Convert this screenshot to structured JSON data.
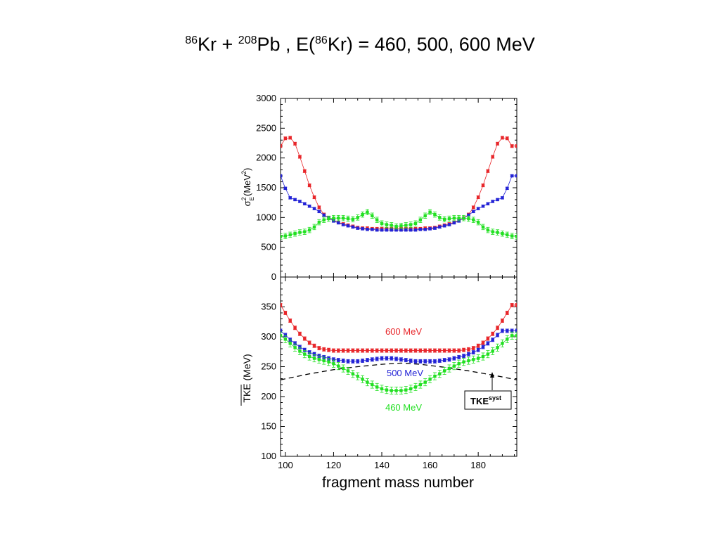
{
  "title": {
    "sup1": "86",
    "t1": "Kr + ",
    "sup2": "208",
    "t2": "Pb , E(",
    "sup3": "86",
    "t3": "Kr) = 460, 500, 600 MeV"
  },
  "chart_data": [
    {
      "type": "scatter",
      "panel": "top",
      "ylabel": {
        "base": "σ",
        "sup": "2",
        "sub": "E",
        "unit": "(MeV",
        "unit_sup": "2",
        "close": ")"
      },
      "xlim": [
        98,
        196
      ],
      "ylim": [
        0,
        3000
      ],
      "yticks": [
        "0",
        "500",
        "1000",
        "1500",
        "2000",
        "2500",
        "3000"
      ],
      "colors": {
        "600 MeV": "#e8262a",
        "500 MeV": "#2323d6",
        "460 MeV": "#22e022"
      },
      "x": [
        98,
        100,
        102,
        104,
        106,
        108,
        110,
        112,
        114,
        116,
        118,
        120,
        122,
        124,
        126,
        128,
        130,
        132,
        134,
        136,
        138,
        140,
        142,
        144,
        146,
        148,
        150,
        152,
        154,
        156,
        158,
        160,
        162,
        164,
        166,
        168,
        170,
        172,
        174,
        176,
        178,
        180,
        182,
        184,
        186,
        188,
        190,
        192,
        194,
        196
      ],
      "series": [
        {
          "name": "600 MeV",
          "values": [
            2200,
            2330,
            2340,
            2240,
            2020,
            1780,
            1540,
            1340,
            1170,
            1050,
            990,
            950,
            920,
            890,
            870,
            850,
            830,
            820,
            820,
            810,
            810,
            810,
            810,
            810,
            810,
            810,
            810,
            810,
            810,
            810,
            820,
            820,
            830,
            850,
            870,
            890,
            920,
            950,
            990,
            1050,
            1170,
            1340,
            1540,
            1780,
            2020,
            2240,
            2340,
            2330,
            2200,
            2200
          ],
          "err": 25
        },
        {
          "name": "500 MeV",
          "values": [
            1700,
            1490,
            1330,
            1300,
            1270,
            1230,
            1190,
            1150,
            1100,
            1040,
            990,
            940,
            910,
            880,
            860,
            840,
            820,
            810,
            800,
            800,
            790,
            790,
            790,
            790,
            790,
            790,
            790,
            790,
            790,
            800,
            800,
            810,
            820,
            840,
            860,
            880,
            910,
            940,
            990,
            1040,
            1100,
            1150,
            1190,
            1230,
            1270,
            1300,
            1330,
            1490,
            1700,
            1700
          ],
          "err": 20
        },
        {
          "name": "460 MeV",
          "values": [
            680,
            690,
            710,
            730,
            750,
            760,
            790,
            840,
            920,
            960,
            980,
            990,
            990,
            990,
            980,
            970,
            1000,
            1050,
            1090,
            1030,
            960,
            900,
            880,
            870,
            850,
            860,
            870,
            880,
            900,
            960,
            1030,
            1090,
            1050,
            1000,
            970,
            980,
            990,
            990,
            990,
            980,
            960,
            920,
            840,
            790,
            760,
            750,
            730,
            710,
            690,
            680
          ],
          "err": 45
        }
      ]
    },
    {
      "type": "scatter",
      "panel": "bottom",
      "ylabel": "TKE (MeV)",
      "xlabel": "fragment mass number",
      "xlim": [
        98,
        196
      ],
      "ylim": [
        100,
        400
      ],
      "xticks": [
        "100",
        "120",
        "140",
        "160",
        "180"
      ],
      "yticks": [
        "100",
        "150",
        "200",
        "250",
        "300",
        "350"
      ],
      "colors": {
        "600 MeV": "#e8262a",
        "500 MeV": "#2323d6",
        "460 MeV": "#22e022"
      },
      "x": [
        98,
        100,
        102,
        104,
        106,
        108,
        110,
        112,
        114,
        116,
        118,
        120,
        122,
        124,
        126,
        128,
        130,
        132,
        134,
        136,
        138,
        140,
        142,
        144,
        146,
        148,
        150,
        152,
        154,
        156,
        158,
        160,
        162,
        164,
        166,
        168,
        170,
        172,
        174,
        176,
        178,
        180,
        182,
        184,
        186,
        188,
        190,
        192,
        194,
        196
      ],
      "series": [
        {
          "name": "600 MeV",
          "values": [
            353,
            340,
            327,
            315,
            305,
            297,
            290,
            285,
            281,
            279,
            278,
            277,
            277,
            277,
            277,
            277,
            277,
            277,
            277,
            277,
            277,
            277,
            277,
            277,
            277,
            277,
            277,
            277,
            277,
            277,
            277,
            277,
            277,
            277,
            277,
            277,
            277,
            277,
            278,
            279,
            281,
            285,
            290,
            297,
            305,
            315,
            327,
            340,
            353,
            353
          ],
          "err": 3
        },
        {
          "name": "500 MeV",
          "values": [
            310,
            303,
            295,
            289,
            283,
            278,
            274,
            271,
            268,
            266,
            264,
            262,
            261,
            260,
            259,
            259,
            259,
            260,
            261,
            262,
            263,
            264,
            264,
            264,
            263,
            262,
            261,
            260,
            259,
            259,
            259,
            259,
            259,
            260,
            261,
            262,
            264,
            266,
            268,
            271,
            274,
            278,
            283,
            289,
            295,
            303,
            310,
            310,
            310,
            310
          ],
          "err": 3
        },
        {
          "name": "460 MeV",
          "values": [
            302,
            296,
            289,
            282,
            276,
            271,
            267,
            264,
            262,
            260,
            258,
            255,
            251,
            247,
            243,
            238,
            234,
            229,
            224,
            220,
            216,
            213,
            211,
            210,
            210,
            210,
            211,
            213,
            216,
            220,
            224,
            229,
            234,
            238,
            243,
            247,
            251,
            255,
            258,
            260,
            262,
            264,
            267,
            271,
            276,
            282,
            289,
            296,
            302,
            302
          ],
          "err": 6
        }
      ],
      "reference_curve": {
        "name": "TKE syst",
        "style": "dashed",
        "x": [
          98,
          110,
          120,
          130,
          140,
          148,
          156,
          166,
          176,
          186,
          196
        ],
        "values": [
          228,
          238,
          245,
          250,
          254,
          256,
          254,
          249,
          243,
          236,
          228
        ]
      },
      "annotations": [
        {
          "text": "600 MeV",
          "color": "#e8262a",
          "x": 148,
          "y": 308
        },
        {
          "text": "500 MeV",
          "color": "#2323d6",
          "x": 148,
          "y": 239
        },
        {
          "text": "460 MeV",
          "color": "#22e022",
          "x": 148,
          "y": 180
        }
      ],
      "label_box": {
        "text": "TKE",
        "sup": "syst"
      }
    }
  ]
}
